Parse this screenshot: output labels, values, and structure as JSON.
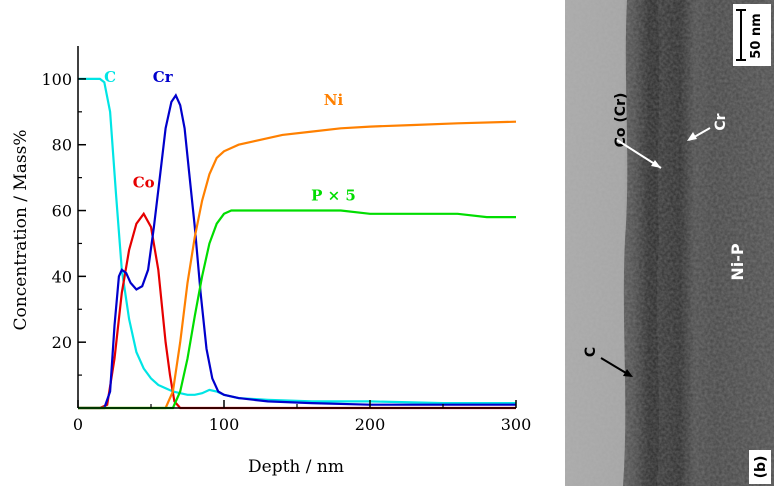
{
  "chart_data": {
    "type": "line",
    "xlabel": "Depth / nm",
    "ylabel": "Concentration / Mass%",
    "xlim": [
      0,
      300
    ],
    "ylim": [
      0,
      110
    ],
    "xticks": [
      0,
      100,
      200,
      300
    ],
    "yticks": [
      20,
      40,
      60,
      80,
      100
    ],
    "grid": false,
    "series": [
      {
        "name": "C",
        "color": "#00e5e5",
        "x": [
          0,
          15,
          18,
          22,
          26,
          30,
          35,
          40,
          45,
          50,
          55,
          60,
          65,
          70,
          75,
          80,
          85,
          90,
          95,
          100,
          110,
          130,
          160,
          200,
          250,
          300
        ],
        "y": [
          100,
          100,
          99,
          90,
          65,
          42,
          27,
          17,
          12,
          9,
          7,
          6,
          5,
          4.5,
          4,
          4,
          4.5,
          5.5,
          5,
          4,
          3,
          2.5,
          2,
          2,
          1.5,
          1.5
        ]
      },
      {
        "name": "Co",
        "color": "#e60000",
        "x": [
          0,
          15,
          20,
          25,
          30,
          35,
          40,
          45,
          50,
          55,
          60,
          63,
          66,
          70,
          80,
          100,
          150,
          200,
          250,
          300
        ],
        "y": [
          0,
          0,
          1,
          15,
          35,
          48,
          56,
          59,
          55,
          42,
          20,
          10,
          2,
          0,
          0,
          0,
          0,
          0,
          0,
          0
        ]
      },
      {
        "name": "Cr",
        "color": "#0000cc",
        "x": [
          0,
          18,
          22,
          25,
          28,
          30,
          33,
          36,
          40,
          44,
          48,
          52,
          56,
          60,
          64,
          67,
          70,
          73,
          76,
          80,
          84,
          88,
          92,
          96,
          100,
          110,
          130,
          160,
          200,
          250,
          300
        ],
        "y": [
          0,
          0,
          5,
          25,
          40,
          42,
          41,
          38,
          36,
          37,
          42,
          55,
          70,
          85,
          93,
          95,
          92,
          85,
          72,
          55,
          35,
          18,
          9,
          5,
          4,
          3,
          2,
          1.5,
          1,
          1,
          1
        ]
      },
      {
        "name": "Ni",
        "color": "#ff8000",
        "x": [
          0,
          60,
          65,
          70,
          75,
          80,
          85,
          90,
          95,
          100,
          105,
          110,
          120,
          140,
          160,
          180,
          200,
          230,
          260,
          300
        ],
        "y": [
          0,
          0,
          5,
          20,
          38,
          52,
          63,
          71,
          76,
          78,
          79,
          80,
          81,
          83,
          84,
          85,
          85.5,
          86,
          86.5,
          87
        ]
      },
      {
        "name": "P × 5",
        "color": "#00dd00",
        "x": [
          0,
          65,
          70,
          75,
          80,
          85,
          90,
          95,
          100,
          105,
          110,
          120,
          140,
          160,
          180,
          200,
          220,
          240,
          260,
          280,
          300
        ],
        "y": [
          0,
          0,
          5,
          15,
          28,
          40,
          50,
          56,
          59,
          60,
          60,
          60,
          60,
          60,
          60,
          59,
          59,
          59,
          59,
          58,
          58
        ]
      }
    ]
  },
  "image_panel": {
    "scale_bar": "50 nm",
    "panel_label": "(b)",
    "labels": [
      "Co (Cr)",
      "Cr",
      "Ni-P",
      "C"
    ]
  }
}
